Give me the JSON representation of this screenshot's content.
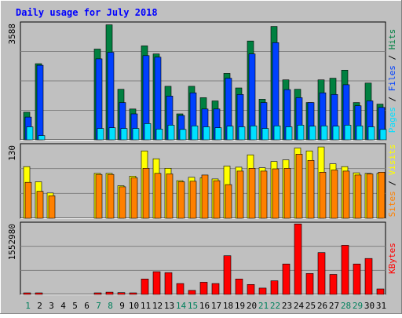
{
  "title": "Daily usage for July 2018",
  "colors": {
    "background": "#c0c0c0",
    "title": "#0000ff",
    "hits": "#008040",
    "files": "#0040ff",
    "pages": "#00e0ff",
    "visits": "#ffff00",
    "sites": "#ff8000",
    "kbytes": "#ff0000",
    "weekend_day": "#00805c",
    "weekday": "#000000"
  },
  "chart_data": [
    {
      "type": "bar",
      "title": "Daily usage for July 2018",
      "y_axis_label": "3588",
      "ylim": [
        0,
        3588
      ],
      "grid": true,
      "legend": [
        {
          "name": "Pages",
          "color": "#00e0ff"
        },
        {
          "name": "Files",
          "color": "#0040ff"
        },
        {
          "name": "Hits",
          "color": "#008040"
        }
      ],
      "categories": [
        "1",
        "2",
        "3",
        "4",
        "5",
        "6",
        "7",
        "8",
        "9",
        "10",
        "11",
        "12",
        "13",
        "14",
        "15",
        "16",
        "17",
        "18",
        "19",
        "20",
        "21",
        "22",
        "23",
        "24",
        "25",
        "26",
        "27",
        "28",
        "29",
        "30",
        "31"
      ],
      "series": [
        {
          "name": "Hits",
          "values": [
            850,
            2350,
            0,
            0,
            0,
            0,
            2800,
            3550,
            1560,
            950,
            2900,
            2650,
            1650,
            800,
            1650,
            1300,
            1200,
            2050,
            1600,
            3050,
            1250,
            3500,
            1850,
            1560,
            1150,
            1850,
            1900,
            2150,
            1150,
            1750,
            1100
          ]
        },
        {
          "name": "Files",
          "values": [
            700,
            2300,
            0,
            0,
            0,
            0,
            2500,
            2700,
            1150,
            800,
            2600,
            2550,
            1350,
            750,
            1450,
            950,
            950,
            1900,
            1400,
            2650,
            1150,
            3000,
            1550,
            1300,
            1150,
            1450,
            1400,
            1700,
            1050,
            1200,
            1000
          ]
        },
        {
          "name": "Pages",
          "values": [
            400,
            130,
            0,
            0,
            0,
            0,
            350,
            370,
            350,
            350,
            500,
            330,
            450,
            320,
            430,
            400,
            370,
            420,
            400,
            430,
            350,
            430,
            400,
            450,
            420,
            430,
            420,
            450,
            430,
            400,
            320
          ]
        }
      ]
    },
    {
      "type": "bar",
      "y_axis_label": "130",
      "ylim": [
        0,
        130
      ],
      "grid": true,
      "legend": [
        {
          "name": "Sites",
          "color": "#ff8000"
        },
        {
          "name": "Visits",
          "color": "#ffff00"
        }
      ],
      "categories": [
        "1",
        "2",
        "3",
        "4",
        "5",
        "6",
        "7",
        "8",
        "9",
        "10",
        "11",
        "12",
        "13",
        "14",
        "15",
        "16",
        "17",
        "18",
        "19",
        "20",
        "21",
        "22",
        "23",
        "24",
        "25",
        "26",
        "27",
        "28",
        "29",
        "30",
        "31"
      ],
      "series": [
        {
          "name": "Visits",
          "values": [
            92,
            65,
            45,
            0,
            0,
            0,
            80,
            80,
            58,
            75,
            120,
            106,
            89,
            67,
            73,
            72,
            70,
            93,
            91,
            113,
            90,
            101,
            104,
            125,
            120,
            127,
            97,
            92,
            81,
            80,
            80
          ]
        },
        {
          "name": "Sites",
          "values": [
            64,
            48,
            40,
            0,
            0,
            0,
            78,
            78,
            56,
            72,
            89,
            80,
            79,
            65,
            66,
            77,
            67,
            60,
            84,
            89,
            84,
            88,
            89,
            114,
            103,
            82,
            86,
            84,
            77,
            79,
            82
          ]
        }
      ]
    },
    {
      "type": "bar",
      "y_axis_label": "1552980",
      "ylim": [
        0,
        1552980
      ],
      "grid": true,
      "legend": [
        {
          "name": "KBytes",
          "color": "#ff0000"
        }
      ],
      "categories": [
        "1",
        "2",
        "3",
        "4",
        "5",
        "6",
        "7",
        "8",
        "9",
        "10",
        "11",
        "12",
        "13",
        "14",
        "15",
        "16",
        "17",
        "18",
        "19",
        "20",
        "21",
        "22",
        "23",
        "24",
        "25",
        "26",
        "27",
        "28",
        "29",
        "30",
        "31"
      ],
      "series": [
        {
          "name": "KBytes",
          "values": [
            20000,
            20000,
            0,
            0,
            0,
            0,
            35000,
            50000,
            40000,
            25000,
            340000,
            500000,
            480000,
            240000,
            90000,
            270000,
            240000,
            850000,
            340000,
            220000,
            140000,
            300000,
            670000,
            1550000,
            460000,
            920000,
            440000,
            1080000,
            670000,
            790000,
            120000
          ]
        }
      ]
    }
  ],
  "weekend_days": [
    1,
    7,
    8,
    14,
    15,
    21,
    22,
    28,
    29
  ]
}
